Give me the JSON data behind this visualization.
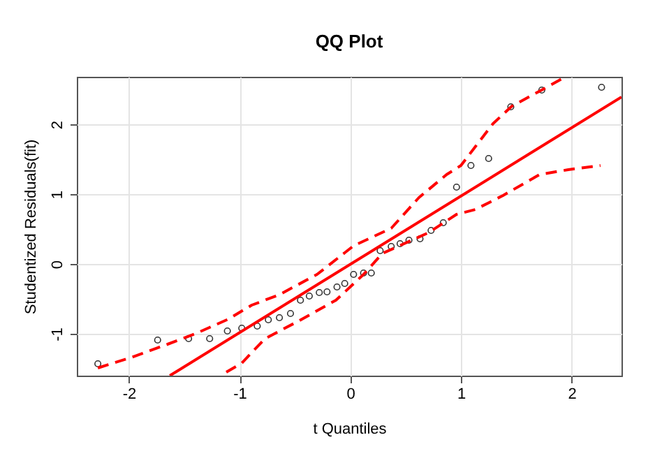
{
  "chart_data": {
    "type": "scatter",
    "title": "QQ Plot",
    "xlabel": "t Quantiles",
    "ylabel": "Studentized Residuals(fit)",
    "xlim": [
      -2.47,
      2.45
    ],
    "ylim": [
      -1.6,
      2.68
    ],
    "xticks": [
      -2,
      -1,
      0,
      1,
      2
    ],
    "yticks": [
      -1,
      0,
      1,
      2
    ],
    "grid": true,
    "series": [
      {
        "type": "scatter",
        "marker": "circle",
        "color": "#333333",
        "x": [
          -2.28,
          -1.74,
          -1.46,
          -1.27,
          -1.11,
          -0.98,
          -0.84,
          -0.74,
          -0.64,
          -0.54,
          -0.45,
          -0.37,
          -0.28,
          -0.21,
          -0.12,
          -0.05,
          0.03,
          0.12,
          0.19,
          0.27,
          0.37,
          0.45,
          0.53,
          0.63,
          0.73,
          0.84,
          0.96,
          1.09,
          1.25,
          1.45,
          1.73,
          2.27
        ],
        "values": [
          -1.43,
          -1.09,
          -1.07,
          -1.07,
          -0.96,
          -0.92,
          -0.89,
          -0.8,
          -0.77,
          -0.71,
          -0.52,
          -0.46,
          -0.41,
          -0.4,
          -0.33,
          -0.28,
          -0.15,
          -0.13,
          -0.13,
          0.19,
          0.25,
          0.29,
          0.34,
          0.36,
          0.48,
          0.59,
          1.1,
          1.41,
          1.51,
          2.25,
          2.49,
          2.53
        ]
      },
      {
        "type": "line",
        "line_style": "solid",
        "color": "#ff0000",
        "x": [
          -1.63,
          2.45
        ],
        "values": [
          -1.6,
          2.39
        ]
      },
      {
        "type": "line",
        "line_style": "dashed",
        "color": "#ff0000",
        "x": [
          -2.28,
          -1.98,
          -1.65,
          -1.4,
          -1.1,
          -0.89,
          -0.64,
          -0.3,
          -0.05,
          0.03,
          0.37,
          0.62,
          0.87,
          1.0,
          1.13,
          1.29,
          1.46,
          1.74,
          1.92
        ],
        "values": [
          -1.49,
          -1.34,
          -1.15,
          -1.0,
          -0.79,
          -0.59,
          -0.44,
          -0.15,
          0.16,
          0.26,
          0.51,
          0.95,
          1.28,
          1.41,
          1.68,
          2.01,
          2.26,
          2.5,
          2.66
        ]
      },
      {
        "type": "line",
        "line_style": "dashed",
        "color": "#ff0000",
        "x": [
          -1.12,
          -0.98,
          -0.77,
          -0.47,
          -0.13,
          0.12,
          0.29,
          0.71,
          0.96,
          1.13,
          1.38,
          1.71,
          1.97,
          2.26
        ],
        "values": [
          -1.55,
          -1.42,
          -1.07,
          -0.82,
          -0.52,
          -0.15,
          0.15,
          0.45,
          0.71,
          0.78,
          0.98,
          1.28,
          1.35,
          1.41
        ]
      }
    ]
  }
}
